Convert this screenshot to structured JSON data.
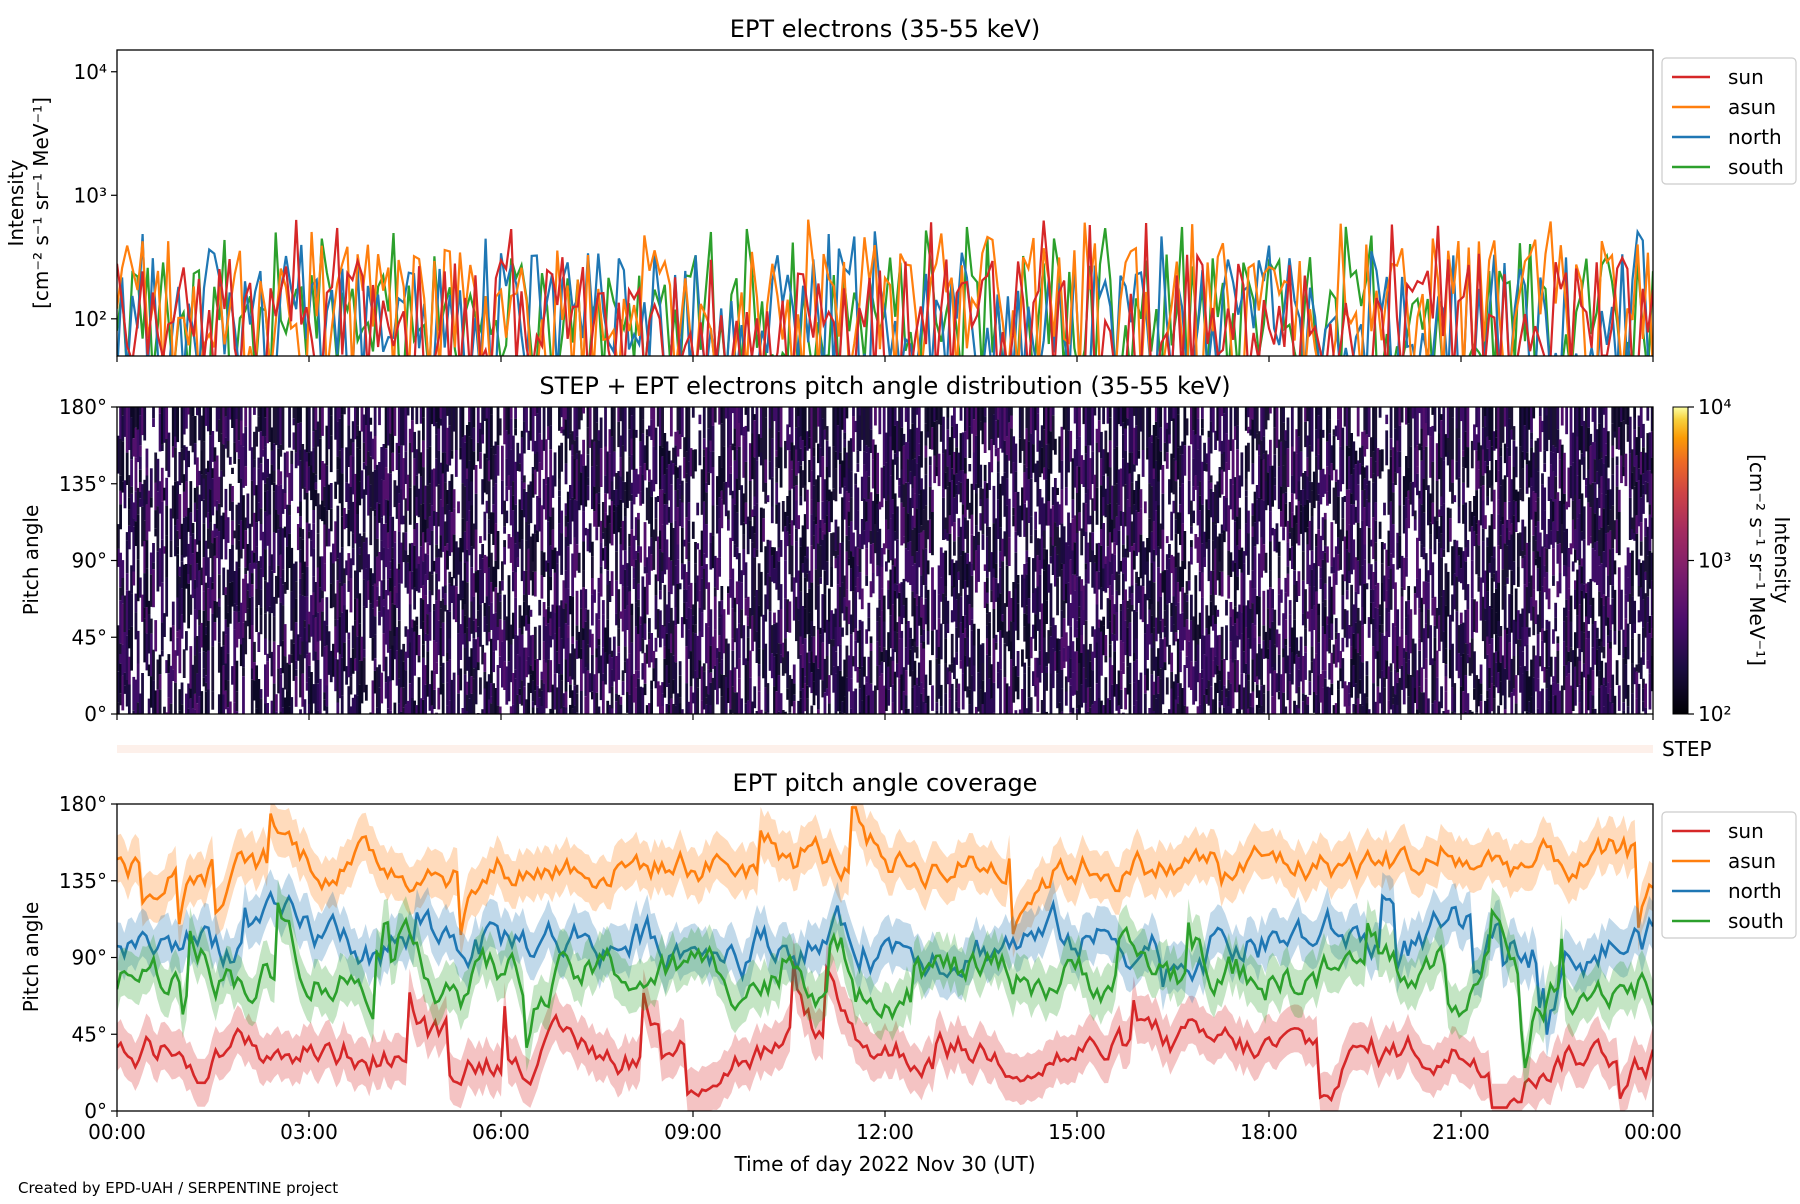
{
  "figure": {
    "credit": "Created by EPD-UAH / SERPENTINE project",
    "xlabel": "Time of day 2022 Nov 30 (UT)",
    "xticks": [
      "00:00",
      "03:00",
      "06:00",
      "09:00",
      "12:00",
      "15:00",
      "18:00",
      "21:00",
      "00:00"
    ],
    "step_label": "STEP"
  },
  "chart_data": [
    {
      "type": "line",
      "title": "EPT electrons (35-55 keV)",
      "ylabel_line1": "Intensity",
      "ylabel_line2": "[cm⁻² s⁻¹ sr⁻¹ MeV⁻¹]",
      "yscale": "log",
      "ylim": [
        50,
        15000
      ],
      "yticks": [
        100,
        1000,
        10000
      ],
      "ytick_labels": [
        "10²",
        "10³",
        "10⁴"
      ],
      "xlim_hours": [
        0,
        24
      ],
      "legend": "upper-right-outside",
      "series": [
        {
          "name": "sun",
          "color": "#d62728",
          "typical": 120,
          "peak": 640
        },
        {
          "name": "asun",
          "color": "#ff7f0e",
          "typical": 160,
          "peak": 640
        },
        {
          "name": "north",
          "color": "#1f77b4",
          "typical": 130,
          "peak": 520
        },
        {
          "name": "south",
          "color": "#2ca02c",
          "typical": 120,
          "peak": 560
        }
      ]
    },
    {
      "type": "heatmap",
      "title": "STEP + EPT electrons pitch angle distribution (35-55 keV)",
      "ylabel": "Pitch angle",
      "ylim": [
        0,
        180
      ],
      "yticks": [
        "0°",
        "45°",
        "90°",
        "135°",
        "180°"
      ],
      "colorbar": {
        "label_line1": "Intensity",
        "label_line2": "[cm⁻² s⁻¹ sr⁻¹ MeV⁻¹]",
        "scale": "log",
        "range": [
          100,
          10000
        ],
        "tick_labels": [
          "10²",
          "10³",
          "10⁴"
        ],
        "colormap": "inferno"
      },
      "typical_intensity": 150
    },
    {
      "type": "line",
      "title": "EPT pitch angle coverage",
      "ylabel": "Pitch angle",
      "ylim": [
        0,
        180
      ],
      "yticks": [
        "0°",
        "45°",
        "90°",
        "135°",
        "180°"
      ],
      "legend": "upper-right-outside",
      "series": [
        {
          "name": "sun",
          "color": "#d62728",
          "mean_deg": 35,
          "spread_deg": 20
        },
        {
          "name": "asun",
          "color": "#ff7f0e",
          "mean_deg": 145,
          "spread_deg": 20
        },
        {
          "name": "north",
          "color": "#1f77b4",
          "mean_deg": 100,
          "spread_deg": 25
        },
        {
          "name": "south",
          "color": "#2ca02c",
          "mean_deg": 80,
          "spread_deg": 25
        }
      ]
    }
  ]
}
